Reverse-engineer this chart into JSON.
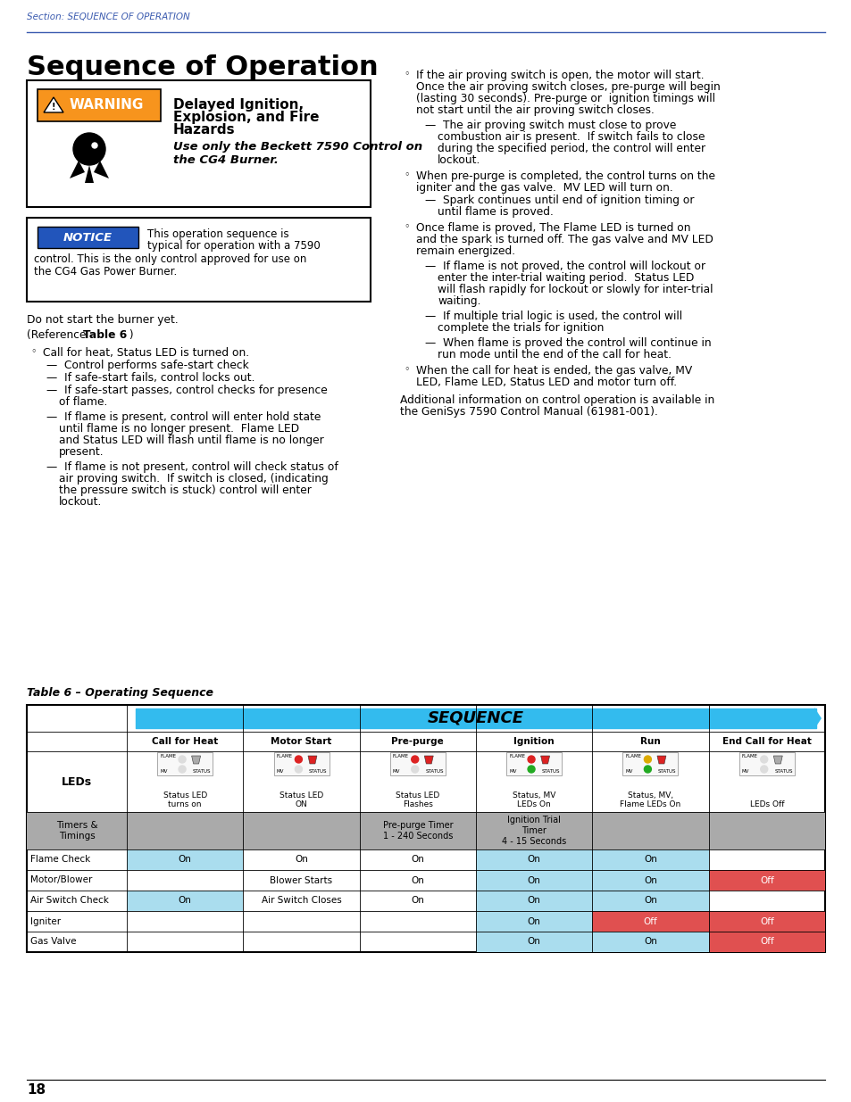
{
  "page_number": "18",
  "section_header": "Section: SEQUENCE OF OPERATION",
  "title": "Sequence of Operation",
  "colors": {
    "header_blue": "#3b5baf",
    "orange": "#F7941D",
    "notice_blue": "#2255bb",
    "red_cell": "#e05050",
    "light_blue": "#33bbee",
    "section_blue": "#3b5baf",
    "gray_cell": "#888888",
    "light_blue_cell": "#aaddee"
  },
  "table_columns": [
    "Call for Heat",
    "Motor Start",
    "Pre-purge",
    "Ignition",
    "Run",
    "End Call for Heat"
  ],
  "table_led_row": [
    "Status LED\nturns on",
    "Status LED\nON",
    "Status LED\nFlashes",
    "Status, MV\nLEDs On",
    "Status, MV,\nFlame LEDs On",
    "LEDs Off"
  ],
  "table_timers_row": [
    "",
    "",
    "Pre-purge Timer\n1 - 240 Seconds",
    "Ignition Trial\nTimer\n4 - 15 Seconds",
    "",
    ""
  ],
  "table_rows": [
    {
      "label": "Flame Check",
      "cells": [
        "On",
        "On",
        "On",
        "On",
        "On",
        ""
      ],
      "bg": [
        "blue",
        "",
        "",
        "blue",
        "blue",
        ""
      ]
    },
    {
      "label": "Motor/Blower",
      "cells": [
        "",
        "Blower Starts",
        "On",
        "On",
        "On",
        "Off"
      ],
      "bg": [
        "",
        "",
        "",
        "blue",
        "blue",
        "red"
      ]
    },
    {
      "label": "Air Switch Check",
      "cells": [
        "On",
        "Air Switch Closes",
        "On",
        "On",
        "On",
        ""
      ],
      "bg": [
        "blue",
        "",
        "",
        "blue",
        "blue",
        ""
      ]
    },
    {
      "label": "Igniter",
      "cells": [
        "",
        "",
        "",
        "On",
        "Off",
        "Off"
      ],
      "bg": [
        "",
        "",
        "",
        "blue",
        "red",
        "red"
      ]
    },
    {
      "label": "Gas Valve",
      "cells": [
        "",
        "",
        "",
        "On",
        "On",
        "Off"
      ],
      "bg": [
        "",
        "",
        "",
        "blue",
        "blue",
        "red"
      ]
    }
  ]
}
